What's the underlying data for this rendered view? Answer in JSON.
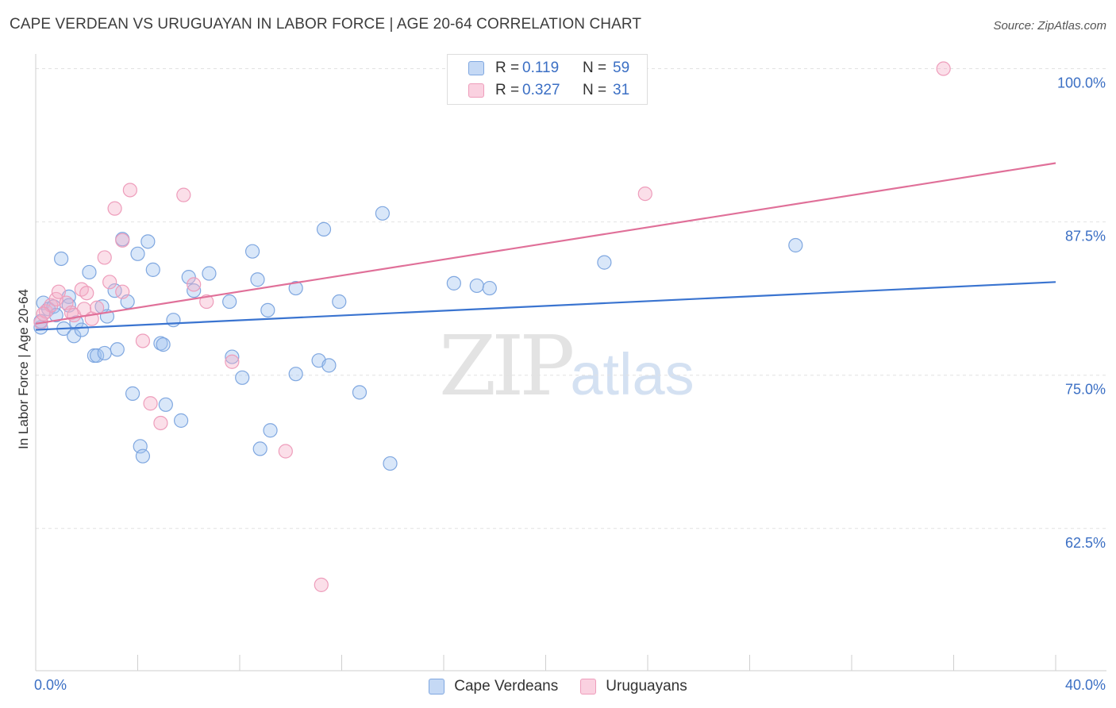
{
  "title": "CAPE VERDEAN VS URUGUAYAN IN LABOR FORCE | AGE 20-64 CORRELATION CHART",
  "source": "Source: ZipAtlas.com",
  "watermark": {
    "zip": "ZIP",
    "atlas": "atlas"
  },
  "legend": {
    "rows": [
      {
        "r_label": "R =",
        "r_value": "0.119",
        "n_label": "N =",
        "n_value": "59"
      },
      {
        "r_label": "R =",
        "r_value": "0.327",
        "n_label": "N =",
        "n_value": "31"
      }
    ]
  },
  "chart_data": {
    "type": "scatter",
    "ylabel": "In Labor Force | Age 20-64",
    "xlim": [
      0,
      40
    ],
    "ylim": [
      50.9,
      101.2
    ],
    "x_tick_labels": [
      "0.0%",
      "40.0%"
    ],
    "y_ticks": [
      62.5,
      75.0,
      87.5,
      100.0
    ],
    "y_tick_labels": [
      "62.5%",
      "75.0%",
      "87.5%",
      "100.0%"
    ],
    "grid": true,
    "series": [
      {
        "name": "Cape Verdeans",
        "color": "#8fb4e8",
        "line_color": "#3a74d0",
        "trend": [
          [
            0,
            78.7
          ],
          [
            40,
            82.6
          ]
        ],
        "points": [
          [
            0.2,
            78.9
          ],
          [
            0.3,
            80.9
          ],
          [
            0.5,
            80.4
          ],
          [
            0.7,
            80.6
          ],
          [
            0.8,
            79.9
          ],
          [
            1.0,
            84.5
          ],
          [
            1.1,
            78.8
          ],
          [
            1.3,
            81.4
          ],
          [
            1.5,
            78.2
          ],
          [
            1.6,
            79.3
          ],
          [
            1.8,
            78.7
          ],
          [
            2.1,
            83.4
          ],
          [
            2.3,
            76.6
          ],
          [
            2.4,
            76.6
          ],
          [
            2.6,
            80.6
          ],
          [
            2.7,
            76.8
          ],
          [
            2.8,
            79.8
          ],
          [
            3.1,
            81.9
          ],
          [
            3.2,
            77.1
          ],
          [
            3.4,
            86.1
          ],
          [
            3.6,
            81.0
          ],
          [
            3.8,
            73.5
          ],
          [
            4.0,
            84.9
          ],
          [
            4.1,
            69.2
          ],
          [
            4.2,
            68.4
          ],
          [
            4.4,
            85.9
          ],
          [
            4.6,
            83.6
          ],
          [
            4.9,
            77.6
          ],
          [
            5.0,
            77.5
          ],
          [
            5.1,
            72.6
          ],
          [
            5.4,
            79.5
          ],
          [
            5.7,
            71.3
          ],
          [
            6.0,
            83.0
          ],
          [
            6.2,
            81.9
          ],
          [
            6.8,
            83.3
          ],
          [
            7.6,
            81.0
          ],
          [
            7.7,
            76.5
          ],
          [
            8.1,
            74.8
          ],
          [
            8.5,
            85.1
          ],
          [
            8.7,
            82.8
          ],
          [
            8.8,
            69.0
          ],
          [
            9.1,
            80.3
          ],
          [
            9.2,
            70.5
          ],
          [
            10.2,
            75.1
          ],
          [
            10.2,
            82.1
          ],
          [
            11.1,
            76.2
          ],
          [
            11.5,
            75.8
          ],
          [
            11.3,
            86.9
          ],
          [
            11.9,
            81.0
          ],
          [
            12.7,
            73.6
          ],
          [
            13.6,
            88.2
          ],
          [
            13.9,
            67.8
          ],
          [
            16.4,
            82.5
          ],
          [
            17.3,
            82.3
          ],
          [
            17.8,
            82.1
          ],
          [
            22.3,
            84.2
          ],
          [
            29.8,
            85.6
          ],
          [
            0.2,
            79.4
          ],
          [
            1.3,
            80.7
          ]
        ]
      },
      {
        "name": "Uruguayans",
        "color": "#f3a9c3",
        "line_color": "#e07099",
        "trend": [
          [
            0,
            79.2
          ],
          [
            40,
            92.3
          ]
        ],
        "points": [
          [
            0.2,
            79.3
          ],
          [
            0.4,
            80.2
          ],
          [
            0.6,
            80.7
          ],
          [
            0.8,
            81.2
          ],
          [
            0.9,
            81.8
          ],
          [
            1.2,
            80.9
          ],
          [
            1.4,
            80.1
          ],
          [
            1.5,
            79.9
          ],
          [
            1.8,
            82.0
          ],
          [
            1.9,
            80.4
          ],
          [
            2.0,
            81.7
          ],
          [
            2.2,
            79.6
          ],
          [
            2.4,
            80.5
          ],
          [
            2.7,
            84.6
          ],
          [
            2.9,
            82.6
          ],
          [
            3.1,
            88.6
          ],
          [
            3.4,
            86.0
          ],
          [
            3.4,
            81.8
          ],
          [
            3.7,
            90.1
          ],
          [
            4.2,
            77.8
          ],
          [
            4.5,
            72.7
          ],
          [
            4.9,
            71.1
          ],
          [
            5.8,
            89.7
          ],
          [
            6.2,
            82.4
          ],
          [
            6.7,
            81.0
          ],
          [
            7.7,
            76.1
          ],
          [
            9.8,
            68.8
          ],
          [
            11.2,
            57.9
          ],
          [
            23.9,
            89.8
          ],
          [
            35.6,
            100.0
          ],
          [
            0.3,
            80.0
          ]
        ]
      }
    ]
  }
}
